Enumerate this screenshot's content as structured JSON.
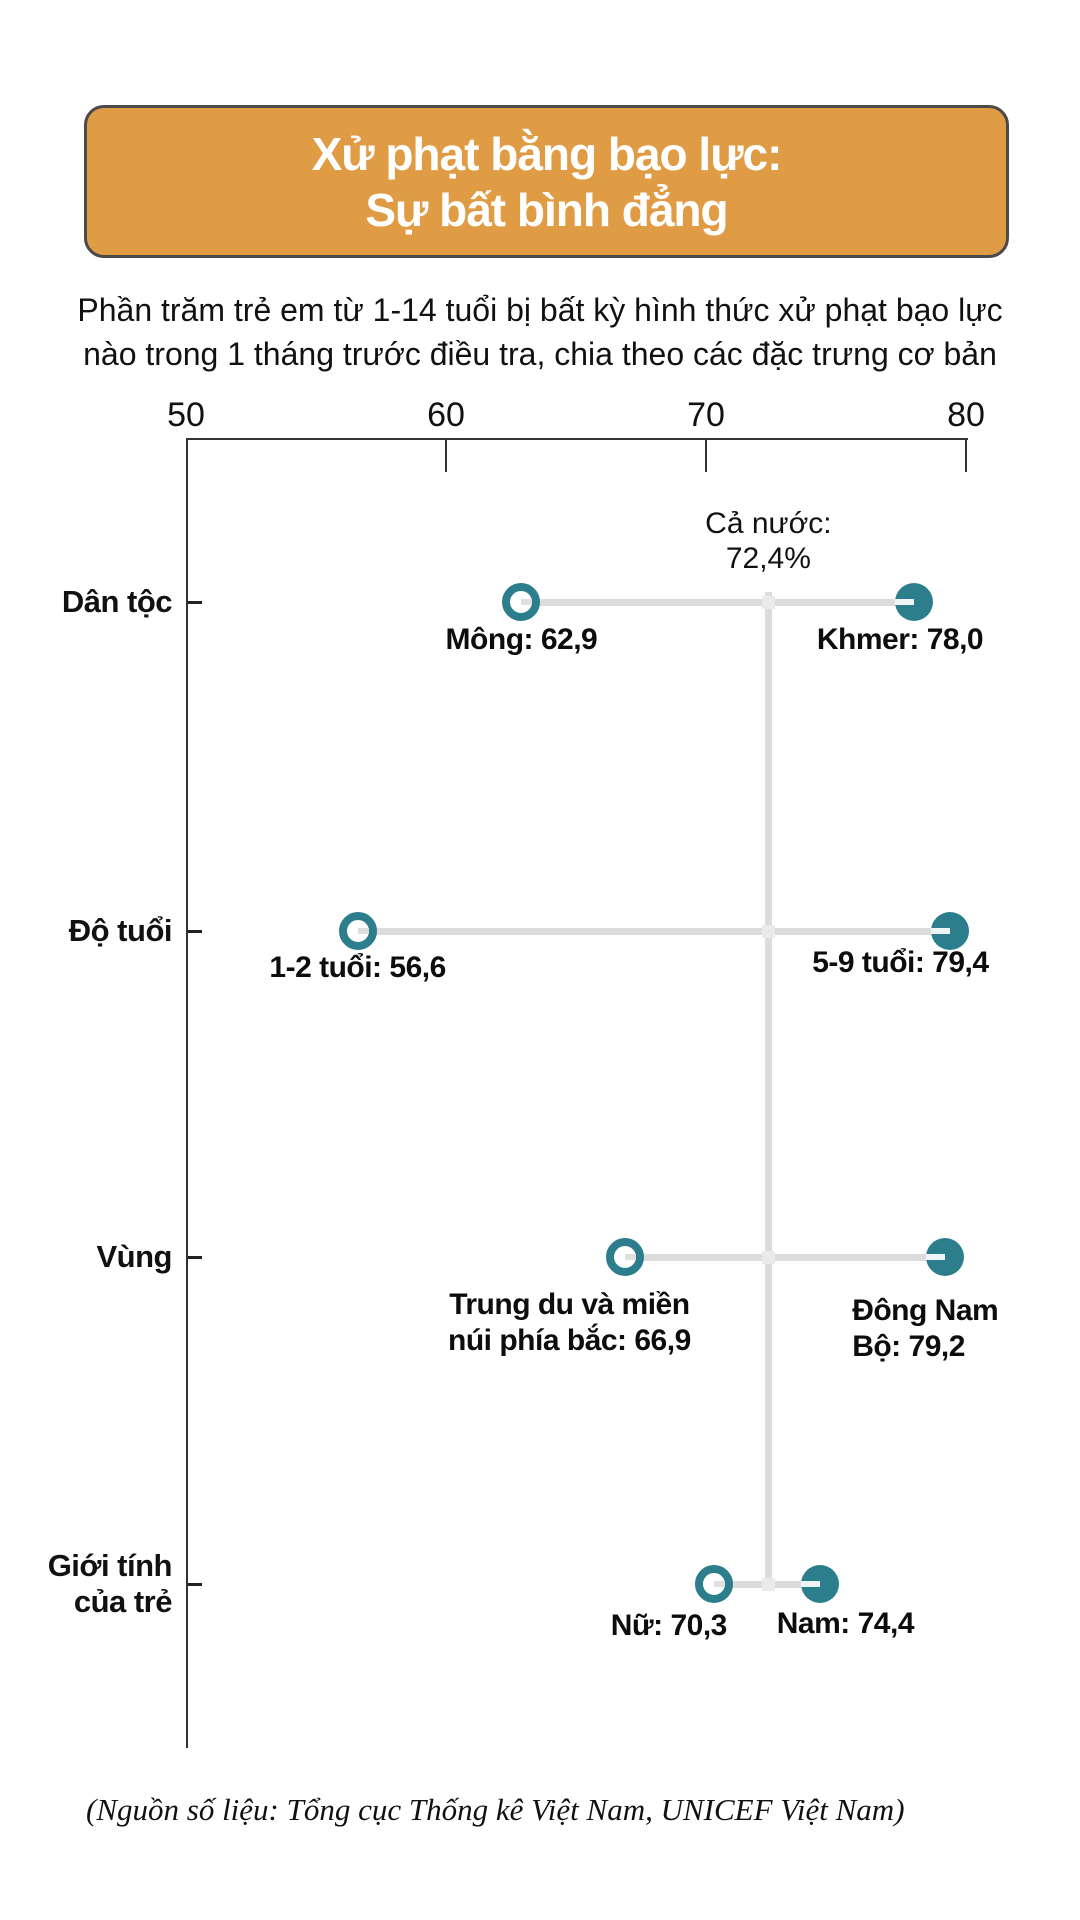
{
  "header": {
    "title_line1": "Xử phạt bằng bạo lực:",
    "title_line2": "Sự bất bình đẳng",
    "bg_color": "#E09C44"
  },
  "subtitle": "Phần trăm trẻ em từ 1-14 tuổi bị bất kỳ hình thức xử phạt bạo lực\nnào trong 1 tháng trước điều tra, chia theo các đặc trưng cơ bản",
  "chart_data": {
    "type": "scatter",
    "subtype": "dumbbell-dot-plot",
    "title": "Xử phạt bằng bạo lực: Sự bất bình đẳng",
    "xlabel": "Phần trăm trẻ em từ 1-14 tuổi (%)",
    "axis": {
      "min": 50,
      "max": 80,
      "ticks": [
        "50",
        "60",
        "70",
        "80"
      ],
      "position": "top"
    },
    "reference": {
      "label": "Cả nước:\n72,4%",
      "value": 72.4
    },
    "rows": [
      {
        "category": "Dân tộc",
        "low": {
          "label": "Mông: 62,9",
          "value": 62.9,
          "marker": "open"
        },
        "high": {
          "label": "Khmer: 78,0",
          "value": 78.0,
          "marker": "filled"
        }
      },
      {
        "category": "Độ tuổi",
        "low": {
          "label": "1-2 tuổi: 56,6",
          "value": 56.6,
          "marker": "open"
        },
        "high": {
          "label": "5-9 tuổi: 79,4",
          "value": 79.4,
          "marker": "filled"
        }
      },
      {
        "category": "Vùng",
        "low": {
          "label": "Trung du và miền\nnúi phía bắc: 66,9",
          "value": 66.9,
          "marker": "open"
        },
        "high": {
          "label": "Đông Nam\nBộ: 79,2",
          "value": 79.2,
          "marker": "filled"
        }
      },
      {
        "category": "Giới tính\ncủa trẻ",
        "low": {
          "label": "Nữ: 70,3",
          "value": 70.3,
          "marker": "open"
        },
        "high": {
          "label": "Nam: 74,4",
          "value": 74.4,
          "marker": "filled"
        }
      }
    ],
    "colors": {
      "dot": "#2D7E8C",
      "connector": "#DCDCDC",
      "axis": "#333333",
      "header_bg": "#E09C44"
    },
    "legend": "off",
    "grid": "off"
  },
  "source": "(Nguồn số liệu: Tổng cục Thống kê Việt Nam, UNICEF Việt Nam)"
}
